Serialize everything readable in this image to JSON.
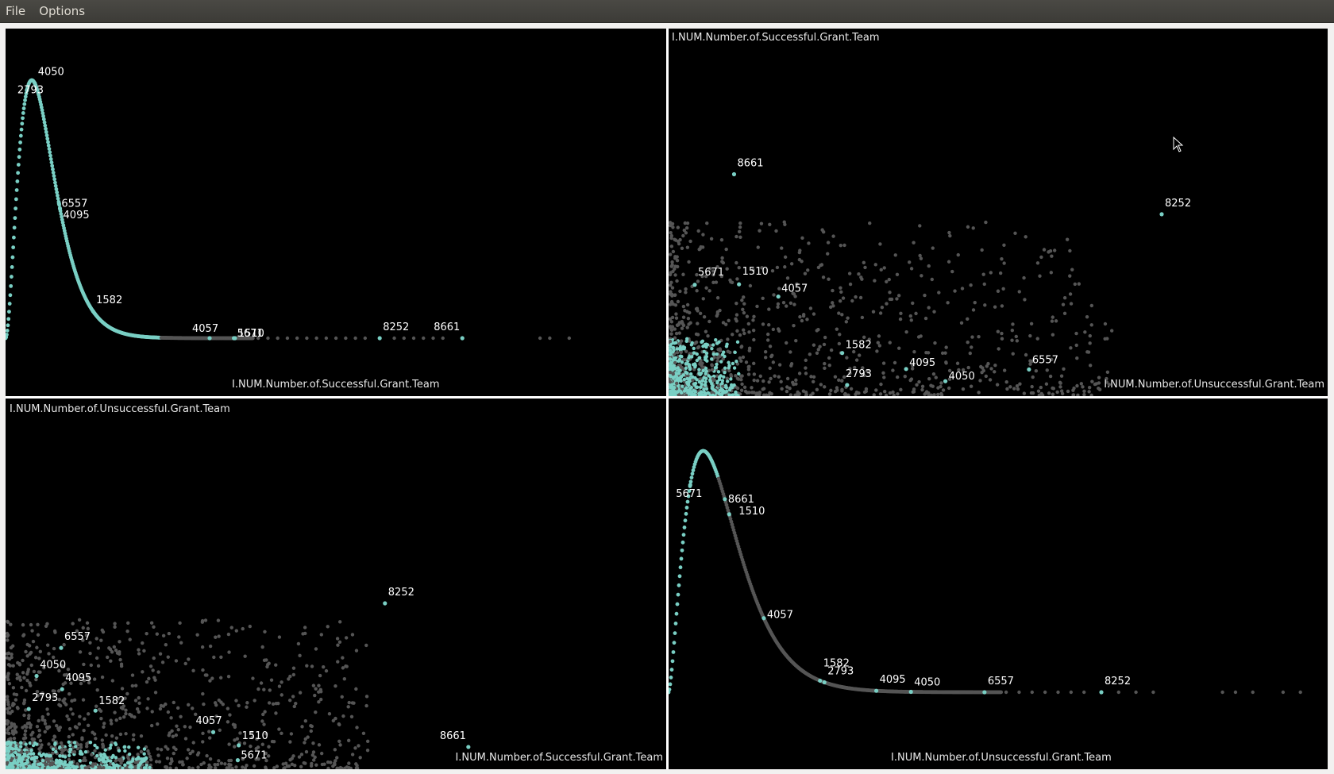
{
  "menu": {
    "file": "File",
    "options": "Options"
  },
  "colors": {
    "highlight": "#79cfc4",
    "other": "#555555",
    "background": "#000000",
    "label": "#ffffff"
  },
  "chart_data": [
    {
      "id": "p00",
      "type": "area",
      "xlabel": "I.NUM.Number.of.Successful.Grant.Team",
      "ylabel": "",
      "xlim": [
        0,
        6.7
      ],
      "ylim": [
        0,
        1
      ],
      "density_peak": 0.27,
      "highlighted_points": [
        {
          "label": "4050",
          "x": 0.3
        },
        {
          "label": "2793",
          "x": 0.22
        },
        {
          "label": "6557",
          "x": 0.55
        },
        {
          "label": "4095",
          "x": 0.56
        },
        {
          "label": "1582",
          "x": 0.9
        },
        {
          "label": "4057",
          "x": 2.1
        },
        {
          "label": "5671",
          "x": 2.35
        },
        {
          "label": "1510",
          "x": 2.36
        },
        {
          "label": "8252",
          "x": 3.85
        },
        {
          "label": "8661",
          "x": 4.7
        }
      ],
      "other_points_x": [
        2.6,
        2.7,
        2.8,
        2.9,
        3.0,
        3.1,
        3.2,
        3.3,
        3.4,
        3.5,
        3.6,
        3.7,
        4.0,
        4.1,
        4.2,
        4.3,
        4.4,
        4.5,
        5.5,
        5.6,
        5.8
      ]
    },
    {
      "id": "p01",
      "type": "scatter",
      "xlabel": "I.NUM.Number.of.Unsuccessful.Grant.Team",
      "ylabel": "I.NUM.Number.of.Successful.Grant.Team",
      "xlim": [
        0,
        20
      ],
      "ylim": [
        0,
        6.7
      ],
      "highlighted_points": [
        {
          "label": "8661",
          "x": 1.3,
          "y": 4.7
        },
        {
          "label": "8252",
          "x": 10.0,
          "y": 3.85
        },
        {
          "label": "5671",
          "x": 0.5,
          "y": 2.35
        },
        {
          "label": "1510",
          "x": 1.4,
          "y": 2.36
        },
        {
          "label": "4057",
          "x": 2.2,
          "y": 2.1
        },
        {
          "label": "1582",
          "x": 3.5,
          "y": 0.9
        },
        {
          "label": "4095",
          "x": 4.8,
          "y": 0.56
        },
        {
          "label": "4050",
          "x": 5.6,
          "y": 0.3
        },
        {
          "label": "6557",
          "x": 7.3,
          "y": 0.55
        },
        {
          "label": "2793",
          "x": 3.6,
          "y": 0.22
        }
      ]
    },
    {
      "id": "p10",
      "type": "scatter",
      "xlabel": "I.NUM.Number.of.Successful.Grant.Team",
      "ylabel": "I.NUM.Number.of.Unsuccessful.Grant.Team",
      "xlim": [
        0,
        6.7
      ],
      "ylim": [
        0,
        20
      ],
      "highlighted_points": [
        {
          "label": "8252",
          "x": 3.85,
          "y": 10.0
        },
        {
          "label": "6557",
          "x": 0.55,
          "y": 7.3
        },
        {
          "label": "4050",
          "x": 0.3,
          "y": 5.6
        },
        {
          "label": "4095",
          "x": 0.56,
          "y": 4.8
        },
        {
          "label": "2793",
          "x": 0.22,
          "y": 3.6
        },
        {
          "label": "1582",
          "x": 0.9,
          "y": 3.5
        },
        {
          "label": "4057",
          "x": 2.1,
          "y": 2.2
        },
        {
          "label": "1510",
          "x": 2.36,
          "y": 1.4
        },
        {
          "label": "5671",
          "x": 2.35,
          "y": 0.5
        },
        {
          "label": "8661",
          "x": 4.7,
          "y": 1.3
        }
      ]
    },
    {
      "id": "p11",
      "type": "area",
      "xlabel": "I.NUM.Number.of.Unsuccessful.Grant.Team",
      "ylabel": "",
      "xlim": [
        0,
        20
      ],
      "ylim": [
        0,
        1
      ],
      "density_peak": 0.8,
      "highlighted_points": [
        {
          "label": "1510",
          "x": 1.4
        },
        {
          "label": "8661",
          "x": 1.3
        },
        {
          "label": "5671",
          "x": 0.5
        },
        {
          "label": "4057",
          "x": 2.2
        },
        {
          "label": "1582",
          "x": 3.5
        },
        {
          "label": "2793",
          "x": 3.6
        },
        {
          "label": "4095",
          "x": 4.8
        },
        {
          "label": "4050",
          "x": 5.6
        },
        {
          "label": "6557",
          "x": 7.3
        },
        {
          "label": "8252",
          "x": 10.0
        }
      ],
      "other_points_x": [
        7.8,
        8.1,
        8.4,
        8.7,
        9.0,
        9.3,
        9.6,
        10.4,
        10.8,
        11.2,
        12.8,
        13.1,
        13.5,
        14.2,
        14.6
      ]
    }
  ]
}
